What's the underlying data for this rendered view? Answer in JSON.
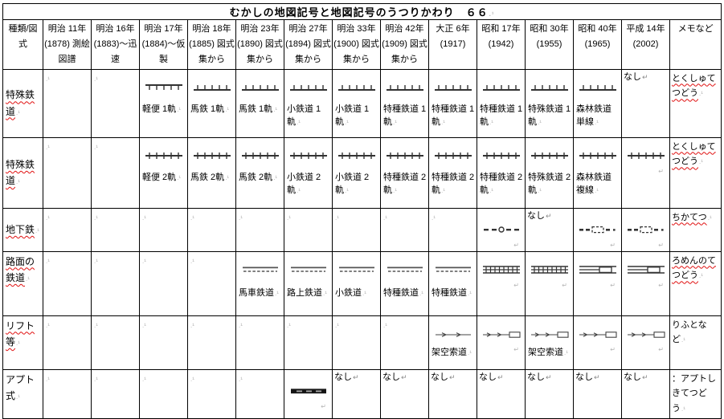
{
  "title": "むかしの地図記号と地図記号のうつりかわり　６６",
  "marks": {
    "cell": ".¹",
    "return": "↵"
  },
  "header": {
    "columns": [
      "種類/図式",
      "明治 11年 (1878) 測絵図譜",
      "明治 16年 (1883)～迅速",
      "明治 17年 (1884)～仮製",
      "明治 18年 (1885) 図式集から",
      "明治 23年 (1890) 図式集から",
      "明治 27年 (1894) 図式集から",
      "明治 33年 (1900) 図式集から",
      "明治 42年 (1909) 図式集から",
      "大正 6年 (1917)",
      "昭和 17年 (1942)",
      "昭和 30年 (1955)",
      "昭和 40年 (1965)",
      "平成 14年 (2002)",
      "メモなど"
    ]
  },
  "rows": [
    {
      "label": "特殊鉄道",
      "label_misspell": true,
      "memo": "とくしゅてつどう",
      "memo_misspell": true,
      "cells": [
        {
          "mark": true
        },
        {
          "mark": true
        },
        {
          "symbol": "track-single-down",
          "label": "軽便 1軌"
        },
        {
          "symbol": "track-single-up",
          "label": "馬鉄 1軌"
        },
        {
          "symbol": "track-single-up",
          "label": "馬鉄 1軌"
        },
        {
          "symbol": "track-single-up",
          "label": "小鉄道 1軌"
        },
        {
          "symbol": "track-single-up",
          "label": "小鉄道 1軌"
        },
        {
          "symbol": "track-single-up",
          "label": "特種鉄道 1軌"
        },
        {
          "symbol": "track-single-up",
          "label": "特種鉄道 1軌"
        },
        {
          "symbol": "track-single-up",
          "label": "特種鉄道 1軌"
        },
        {
          "symbol": "track-single-up",
          "label": "特殊鉄道 1軌"
        },
        {
          "symbol": "track-single-up",
          "label": "森林鉄道 単線"
        },
        {
          "text": "なし"
        }
      ]
    },
    {
      "label": "特殊鉄道",
      "label_misspell": true,
      "memo": "とくしゅてつどう",
      "memo_misspell": true,
      "cells": [
        {
          "mark": true
        },
        {
          "mark": true
        },
        {
          "symbol": "track-cross",
          "label": "軽便 2軌"
        },
        {
          "symbol": "track-cross",
          "label": "馬鉄 2軌"
        },
        {
          "symbol": "track-cross",
          "label": "馬鉄 2軌"
        },
        {
          "symbol": "track-cross",
          "label": "小鉄道 2軌"
        },
        {
          "symbol": "track-cross",
          "label": "小鉄道 2軌"
        },
        {
          "symbol": "track-cross",
          "label": "特種鉄道 2軌"
        },
        {
          "symbol": "track-cross",
          "label": "特種鉄道 2軌"
        },
        {
          "symbol": "track-cross",
          "label": "特種鉄道 2軌"
        },
        {
          "symbol": "track-cross",
          "label": "特殊鉄道 2軌"
        },
        {
          "symbol": "track-cross",
          "label": "森林鉄道 複線"
        },
        {
          "symbol": "track-cross",
          "mark": true
        }
      ]
    },
    {
      "label": "地下鉄",
      "label_misspell": true,
      "memo": "ちかてつ",
      "memo_misspell": true,
      "cells": [
        {
          "mark": true
        },
        {
          "mark": true
        },
        {
          "mark": true
        },
        {
          "mark": true
        },
        {
          "mark": true
        },
        {
          "mark": true
        },
        {
          "mark": true
        },
        {
          "mark": true
        },
        {
          "mark": true
        },
        {
          "symbol": "subway-dash-circle",
          "mark": true
        },
        {
          "text": "なし"
        },
        {
          "symbol": "subway-dash-box",
          "mark": true
        },
        {
          "symbol": "subway-dash-box",
          "mark": true
        }
      ]
    },
    {
      "label": "路面の鉄道",
      "label_misspell": true,
      "memo": "ろめんのてつどう",
      "memo_misspell": true,
      "cells": [
        {
          "mark": true
        },
        {
          "mark": true
        },
        {
          "mark": true
        },
        {
          "mark": true
        },
        {
          "symbol": "tram-double-dash",
          "label": "馬車鉄道"
        },
        {
          "symbol": "tram-double-dash",
          "label": "路上鉄道"
        },
        {
          "symbol": "tram-double-dash",
          "label": "小鉄道"
        },
        {
          "symbol": "tram-double-dash",
          "label": "特種鉄道"
        },
        {
          "symbol": "tram-double-dash",
          "label": "特種鉄道"
        },
        {
          "symbol": "tram-ladder",
          "mark": true
        },
        {
          "symbol": "tram-ladder",
          "mark": true
        },
        {
          "symbol": "tram-box",
          "mark": true
        },
        {
          "symbol": "tram-box",
          "mark": true
        }
      ]
    },
    {
      "label": "リフト等",
      "label_misspell": true,
      "memo": "りふとなど",
      "memo_misspell": false,
      "cells": [
        {
          "mark": true
        },
        {
          "mark": true
        },
        {
          "mark": true
        },
        {
          "mark": true
        },
        {
          "mark": true
        },
        {
          "mark": true
        },
        {
          "mark": true
        },
        {
          "mark": true
        },
        {
          "symbol": "cableway-arrows",
          "label": "架空索道"
        },
        {
          "symbol": "cableway-arrows-box",
          "mark": true
        },
        {
          "symbol": "cableway-arrows-box",
          "label": "架空索道"
        },
        {
          "symbol": "cableway-arrows-box",
          "mark": true
        },
        {
          "symbol": "cableway-arrows-box",
          "mark": true
        }
      ]
    },
    {
      "label": "アプト式",
      "label_misspell": false,
      "memo": "：アプトしきてつどう",
      "memo_misspell": false,
      "cells": [
        {
          "mark": true
        },
        {
          "mark": true
        },
        {
          "mark": true
        },
        {
          "mark": true
        },
        {
          "mark": true
        },
        {
          "symbol": "abt-bar",
          "mark": true
        },
        {
          "text": "なし"
        },
        {
          "text": "なし"
        },
        {
          "text": "なし"
        },
        {
          "text": "なし"
        },
        {
          "text": "なし"
        },
        {
          "text": "なし"
        },
        {
          "text": "なし"
        }
      ]
    }
  ]
}
